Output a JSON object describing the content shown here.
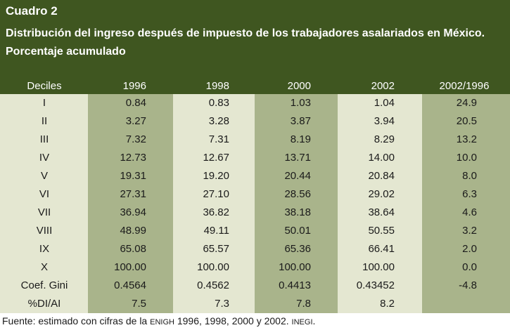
{
  "header": {
    "label": "Cuadro 2",
    "title": "Distribución del ingreso después de impuesto de los trabajadores asalariados en México. Porcentaje acumulado"
  },
  "columns": [
    "Deciles",
    "1996",
    "1998",
    "2000",
    "2002",
    "2002/1996"
  ],
  "rows": [
    {
      "label": "I",
      "v1996": "0.84",
      "v1998": "0.83",
      "v2000": "1.03",
      "v2002": "1.04",
      "ratio": "24.9"
    },
    {
      "label": "II",
      "v1996": "3.27",
      "v1998": "3.28",
      "v2000": "3.87",
      "v2002": "3.94",
      "ratio": "20.5"
    },
    {
      "label": "III",
      "v1996": "7.32",
      "v1998": "7.31",
      "v2000": "8.19",
      "v2002": "8.29",
      "ratio": "13.2"
    },
    {
      "label": "IV",
      "v1996": "12.73",
      "v1998": "12.67",
      "v2000": "13.71",
      "v2002": "14.00",
      "ratio": "10.0"
    },
    {
      "label": "V",
      "v1996": "19.31",
      "v1998": "19.20",
      "v2000": "20.44",
      "v2002": "20.84",
      "ratio": "8.0"
    },
    {
      "label": "VI",
      "v1996": "27.31",
      "v1998": "27.10",
      "v2000": "28.56",
      "v2002": "29.02",
      "ratio": "6.3"
    },
    {
      "label": "VII",
      "v1996": "36.94",
      "v1998": "36.82",
      "v2000": "38.18",
      "v2002": "38.64",
      "ratio": "4.6"
    },
    {
      "label": "VIII",
      "v1996": "48.99",
      "v1998": "49.11",
      "v2000": "50.01",
      "v2002": "50.55",
      "ratio": "3.2"
    },
    {
      "label": "IX",
      "v1996": "65.08",
      "v1998": "65.57",
      "v2000": "65.36",
      "v2002": "66.41",
      "ratio": "2.0"
    },
    {
      "label": "X",
      "v1996": "100.00",
      "v1998": "100.00",
      "v2000": "100.00",
      "v2002": "100.00",
      "ratio": "0.0"
    },
    {
      "label": "Coef. Gini",
      "v1996": "0.4564",
      "v1998": "0.4562",
      "v2000": "0.4413",
      "v2002": "0.43452",
      "ratio": "-4.8"
    },
    {
      "label": "%DI/AI",
      "v1996": "7.5",
      "v1998": "7.3",
      "v2000": "7.8",
      "v2002": "8.2",
      "ratio": ""
    }
  ],
  "source": {
    "prefix": "Fuente: estimado con cifras de la ",
    "enigh": "ENIGH",
    "middle": " 1996, 1998, 2000 y 2002. ",
    "inegi": "INEGI",
    "suffix": "."
  },
  "colors": {
    "header_bg": "#3f5620",
    "band_dark": "#a9b48b",
    "band_light": "#e4e7d1"
  }
}
